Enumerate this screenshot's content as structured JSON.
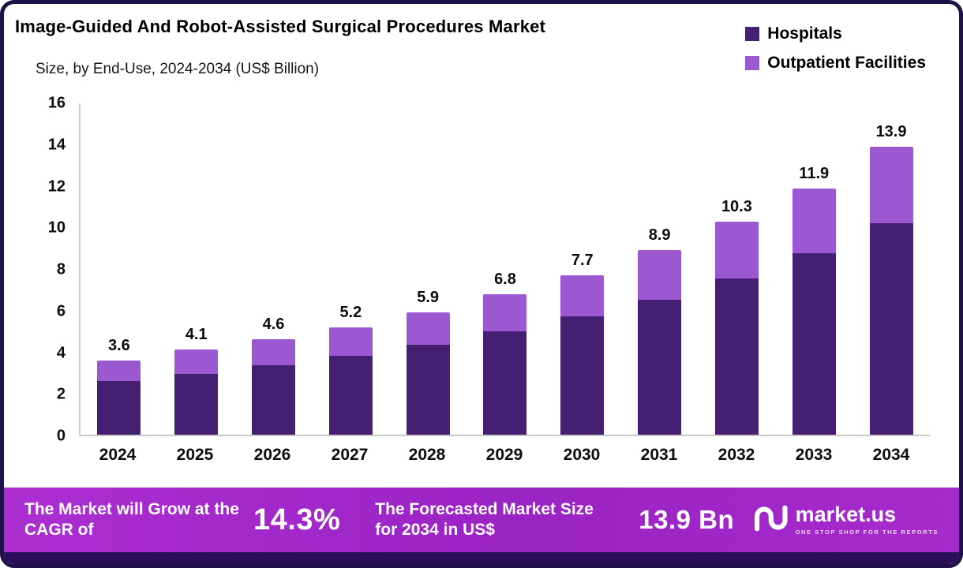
{
  "header": {
    "title": "Image-Guided And Robot-Assisted Surgical Procedures Market",
    "subtitle": "Size, by End-Use, 2024-2034 (US$ Billion)"
  },
  "legend": [
    {
      "label": "Hospitals",
      "color": "#451f71"
    },
    {
      "label": "Outpatient Facilities",
      "color": "#9b58d0"
    }
  ],
  "chart_data": {
    "type": "bar",
    "stacked": true,
    "title": "Image-Guided And Robot-Assisted Surgical Procedures Market",
    "subtitle": "Size, by End-Use, 2024-2034 (US$ Billion)",
    "xlabel": "",
    "ylabel": "US$ Billion",
    "ylim": [
      0,
      16
    ],
    "yticks": [
      0,
      2,
      4,
      6,
      8,
      10,
      12,
      14,
      16
    ],
    "grid": false,
    "legend_position": "top-right",
    "categories": [
      "2024",
      "2025",
      "2026",
      "2027",
      "2028",
      "2029",
      "2030",
      "2031",
      "2032",
      "2033",
      "2034"
    ],
    "series": [
      {
        "name": "Hospitals",
        "color": "#451f71",
        "values": [
          2.6,
          2.95,
          3.35,
          3.8,
          4.35,
          5.0,
          5.7,
          6.5,
          7.55,
          8.75,
          10.2
        ]
      },
      {
        "name": "Outpatient Facilities",
        "color": "#9b58d0",
        "values": [
          1.0,
          1.15,
          1.25,
          1.4,
          1.55,
          1.8,
          2.0,
          2.4,
          2.75,
          3.15,
          3.7
        ]
      }
    ],
    "totals": [
      3.6,
      4.1,
      4.6,
      5.2,
      5.9,
      6.8,
      7.7,
      8.9,
      10.3,
      11.9,
      13.9
    ]
  },
  "banner": {
    "cagr_label": "The Market will Grow at the CAGR of",
    "cagr_value": "14.3%",
    "forecast_label": "The Forecasted Market Size for 2034 in US$",
    "forecast_value": "13.9 Bn",
    "brand": "market.us",
    "brand_tagline": "ONE STOP SHOP FOR THE REPORTS"
  },
  "colors": {
    "hospitals": "#451f71",
    "outpatient": "#9b58d0",
    "banner_gradient_start": "#ab2ed1",
    "banner_gradient_end": "#a62bcb",
    "frame_border": "#1f1248",
    "bottom_strip": "#2a0e59"
  }
}
